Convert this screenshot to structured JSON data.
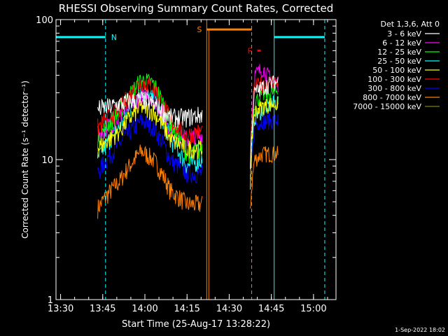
{
  "chart_data": {
    "type": "line",
    "title": "RHESSI Observing Summary Count Rates, Corrected",
    "xlabel": "Start Time (25-Aug-17 13:28:22)",
    "ylabel": "Corrected Count Rate (s⁻¹ detector⁻¹)",
    "y_scale": "log",
    "ylim": [
      1,
      100
    ],
    "xlim": [
      "13:28:22",
      "15:08:00"
    ],
    "x_ticks": [
      "13:30",
      "13:45",
      "14:00",
      "14:15",
      "14:30",
      "14:45",
      "15:00"
    ],
    "y_ticks": [
      "1",
      "10",
      "100"
    ],
    "grid": false,
    "legend_position": "top-right",
    "legend_header": "Det 1,3,6, Att 0",
    "footer_timestamp": "1-Sep-2022 18:02",
    "segments": [
      {
        "start": "13:43:00",
        "end": "14:21:00",
        "shape": "hump",
        "peak_time": "13:59:00"
      },
      {
        "start": "14:37:30",
        "end": "14:50:00",
        "shape": "plateau"
      }
    ],
    "series": [
      {
        "name": "3 - 6 keV",
        "color": "#ffffff",
        "profile": [
          [
            13.72,
            23
          ],
          [
            13.8,
            24
          ],
          [
            13.9,
            26
          ],
          [
            13.98,
            27
          ],
          [
            14.05,
            25
          ],
          [
            14.15,
            20
          ],
          [
            14.25,
            20
          ],
          [
            14.34,
            21
          ]
        ],
        "late": [
          [
            14.625,
            9
          ],
          [
            14.65,
            30
          ],
          [
            14.7,
            33
          ],
          [
            14.75,
            35
          ],
          [
            14.79,
            36
          ]
        ]
      },
      {
        "name": "6 - 12 keV",
        "color": "#ff00ff",
        "profile": [
          [
            13.72,
            15
          ],
          [
            13.85,
            20
          ],
          [
            13.98,
            29
          ],
          [
            14.05,
            28
          ],
          [
            14.15,
            17
          ],
          [
            14.25,
            14
          ],
          [
            14.34,
            15
          ]
        ],
        "late": [
          [
            14.625,
            8
          ],
          [
            14.65,
            40
          ],
          [
            14.7,
            45
          ],
          [
            14.75,
            36
          ],
          [
            14.79,
            35
          ]
        ]
      },
      {
        "name": "12 - 25 keV",
        "color": "#00ff00",
        "profile": [
          [
            13.72,
            14
          ],
          [
            13.85,
            22
          ],
          [
            13.98,
            37
          ],
          [
            14.05,
            35
          ],
          [
            14.15,
            18
          ],
          [
            14.25,
            11
          ],
          [
            14.34,
            12
          ]
        ],
        "late": [
          [
            14.625,
            8
          ],
          [
            14.65,
            26
          ],
          [
            14.7,
            29
          ],
          [
            14.75,
            30
          ],
          [
            14.79,
            31
          ]
        ]
      },
      {
        "name": "25 - 50 keV",
        "color": "#00ffff",
        "profile": [
          [
            13.72,
            10
          ],
          [
            13.85,
            17
          ],
          [
            13.98,
            30
          ],
          [
            14.05,
            27
          ],
          [
            14.15,
            14
          ],
          [
            14.25,
            9
          ],
          [
            14.34,
            10
          ]
        ],
        "late": [
          [
            14.625,
            7
          ],
          [
            14.65,
            20
          ],
          [
            14.7,
            23
          ],
          [
            14.75,
            25
          ],
          [
            14.79,
            26
          ]
        ]
      },
      {
        "name": "50 - 100 keV",
        "color": "#ffff00",
        "profile": [
          [
            13.72,
            12
          ],
          [
            13.85,
            16
          ],
          [
            13.98,
            24
          ],
          [
            14.05,
            22
          ],
          [
            14.15,
            14
          ],
          [
            14.25,
            12
          ],
          [
            14.34,
            12
          ]
        ],
        "late": [
          [
            14.625,
            7
          ],
          [
            14.65,
            22
          ],
          [
            14.7,
            24
          ],
          [
            14.75,
            25
          ],
          [
            14.79,
            25
          ]
        ]
      },
      {
        "name": "100 - 300 keV",
        "color": "#ff0000",
        "profile": [
          [
            13.72,
            17
          ],
          [
            13.85,
            23
          ],
          [
            13.98,
            36
          ],
          [
            14.05,
            33
          ],
          [
            14.15,
            19
          ],
          [
            14.25,
            15
          ],
          [
            14.34,
            16
          ]
        ],
        "late": [
          [
            14.625,
            9
          ],
          [
            14.65,
            33
          ],
          [
            14.7,
            35
          ],
          [
            14.75,
            36
          ],
          [
            14.79,
            36
          ]
        ]
      },
      {
        "name": "300 - 800 keV",
        "color": "#0000ff",
        "profile": [
          [
            13.72,
            8
          ],
          [
            13.85,
            13
          ],
          [
            13.98,
            19
          ],
          [
            14.05,
            17
          ],
          [
            14.15,
            10
          ],
          [
            14.25,
            8
          ],
          [
            14.34,
            8
          ]
        ],
        "late": [
          [
            14.625,
            6
          ],
          [
            14.65,
            18
          ],
          [
            14.7,
            19
          ],
          [
            14.75,
            19
          ],
          [
            14.79,
            19
          ]
        ]
      },
      {
        "name": "800 - 7000 keV",
        "color": "#ff8000",
        "profile": [
          [
            13.72,
            4.5
          ],
          [
            13.85,
            7
          ],
          [
            13.98,
            11.5
          ],
          [
            14.05,
            10
          ],
          [
            14.15,
            6
          ],
          [
            14.25,
            4.8
          ],
          [
            14.34,
            4.8
          ]
        ],
        "late": [
          [
            14.625,
            4.5
          ],
          [
            14.65,
            10
          ],
          [
            14.7,
            11
          ],
          [
            14.75,
            11
          ],
          [
            14.79,
            11
          ]
        ]
      },
      {
        "name": "7000 - 15000 keV",
        "color": "#808000",
        "profile": [],
        "late": []
      }
    ],
    "annotations": [
      {
        "label": "",
        "kind": "eclipse",
        "start": "13:28:22",
        "end": "13:46:00",
        "y": 75,
        "color": "#00ffff"
      },
      {
        "label": "N",
        "kind": "saa",
        "time": "13:46:00",
        "color": "#00ffff"
      },
      {
        "label": "S",
        "kind": "saa",
        "start": "14:22:00",
        "end": "14:38:00",
        "y": 85,
        "color": "#ff8000"
      },
      {
        "label": "F",
        "kind": "flare",
        "time": "14:40:00",
        "y": 60,
        "color": "#ff0000"
      },
      {
        "label": "",
        "kind": "eclipse",
        "start": "14:46:00",
        "end": "15:04:00",
        "y": 75,
        "color": "#00ffff"
      }
    ]
  }
}
